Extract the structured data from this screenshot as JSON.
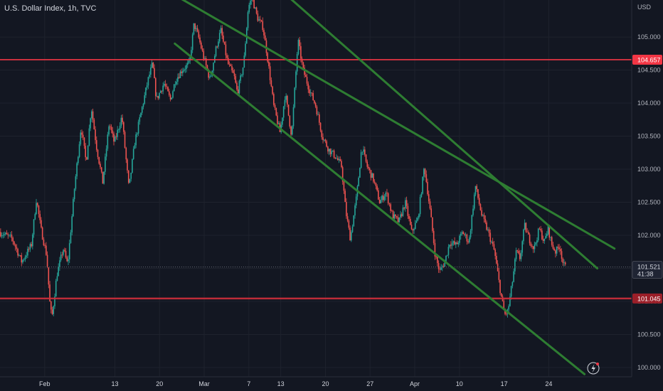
{
  "header": {
    "title": "U.S. Dollar Index, 1h, TVC"
  },
  "colors": {
    "background": "#131722",
    "up": "#26a69a",
    "down": "#ef5350",
    "trendline": "#2e7d32",
    "hline": "#f23645",
    "grid": "#1e222d",
    "axis_text": "#b2b5be"
  },
  "chart_data": {
    "type": "candlestick",
    "title": "U.S. Dollar Index, 1h, TVC",
    "y_unit": "USD",
    "ylim": [
      99.86,
      105.56
    ],
    "y_ticks": [
      "100.000",
      "100.500",
      "101.000",
      "101.500",
      "102.000",
      "102.500",
      "103.000",
      "103.500",
      "104.000",
      "104.500",
      "105.000"
    ],
    "x_ticks": [
      "Feb",
      "13",
      "20",
      "Mar",
      "7",
      "13",
      "20",
      "27",
      "Apr",
      "10",
      "17",
      "24"
    ],
    "x_tick_positions": [
      2,
      13,
      20,
      27,
      34,
      39,
      46,
      53,
      60,
      67,
      74,
      81
    ],
    "x_range": [
      -5,
      94
    ],
    "price_path": [
      [
        -5,
        102.05
      ],
      [
        -3,
        101.95
      ],
      [
        -1.5,
        101.6
      ],
      [
        0,
        101.85
      ],
      [
        0.8,
        102.55
      ],
      [
        1.5,
        102.1
      ],
      [
        2.4,
        101.7
      ],
      [
        3.0,
        100.85
      ],
      [
        3.3,
        100.8
      ],
      [
        4.0,
        101.4
      ],
      [
        5.0,
        101.8
      ],
      [
        5.7,
        101.55
      ],
      [
        6.8,
        102.75
      ],
      [
        7.8,
        103.65
      ],
      [
        8.6,
        103.1
      ],
      [
        9.4,
        103.95
      ],
      [
        10.2,
        103.35
      ],
      [
        11.2,
        102.8
      ],
      [
        12.2,
        103.7
      ],
      [
        13.0,
        103.4
      ],
      [
        14.2,
        103.8
      ],
      [
        14.8,
        103.2
      ],
      [
        15.3,
        102.7
      ],
      [
        16.2,
        103.4
      ],
      [
        17.3,
        103.9
      ],
      [
        18.3,
        104.35
      ],
      [
        19.0,
        104.6
      ],
      [
        19.6,
        104.05
      ],
      [
        20.8,
        104.3
      ],
      [
        21.8,
        104.05
      ],
      [
        22.6,
        104.35
      ],
      [
        23.6,
        104.5
      ],
      [
        24.8,
        104.6
      ],
      [
        25.5,
        105.2
      ],
      [
        26.2,
        105.0
      ],
      [
        27.0,
        104.7
      ],
      [
        28.0,
        104.35
      ],
      [
        29.0,
        104.85
      ],
      [
        29.7,
        105.1
      ],
      [
        30.8,
        104.6
      ],
      [
        31.8,
        104.4
      ],
      [
        32.3,
        104.15
      ],
      [
        33.3,
        104.6
      ],
      [
        34.0,
        105.45
      ],
      [
        34.6,
        105.6
      ],
      [
        35.4,
        105.3
      ],
      [
        36.3,
        105.15
      ],
      [
        37.0,
        104.7
      ],
      [
        38.0,
        103.95
      ],
      [
        39.0,
        103.55
      ],
      [
        39.8,
        104.15
      ],
      [
        40.8,
        103.5
      ],
      [
        41.8,
        104.95
      ],
      [
        42.6,
        104.5
      ],
      [
        43.6,
        104.2
      ],
      [
        44.6,
        103.95
      ],
      [
        45.6,
        103.5
      ],
      [
        46.6,
        103.3
      ],
      [
        47.6,
        103.2
      ],
      [
        48.6,
        103.05
      ],
      [
        49.3,
        102.35
      ],
      [
        50.0,
        101.95
      ],
      [
        51.0,
        102.6
      ],
      [
        51.8,
        103.35
      ],
      [
        52.6,
        103.05
      ],
      [
        53.6,
        102.85
      ],
      [
        54.6,
        102.5
      ],
      [
        55.6,
        102.65
      ],
      [
        56.6,
        102.3
      ],
      [
        57.6,
        102.2
      ],
      [
        58.6,
        102.5
      ],
      [
        59.6,
        102.05
      ],
      [
        60.6,
        102.25
      ],
      [
        61.6,
        103.05
      ],
      [
        62.6,
        102.3
      ],
      [
        63.3,
        101.7
      ],
      [
        64.0,
        101.45
      ],
      [
        64.8,
        101.6
      ],
      [
        65.6,
        101.9
      ],
      [
        66.6,
        101.85
      ],
      [
        67.6,
        102.05
      ],
      [
        68.6,
        101.9
      ],
      [
        69.6,
        102.75
      ],
      [
        70.6,
        102.3
      ],
      [
        71.6,
        102.05
      ],
      [
        72.6,
        101.75
      ],
      [
        73.6,
        101.1
      ],
      [
        74.2,
        100.8
      ],
      [
        74.7,
        100.85
      ],
      [
        75.4,
        101.3
      ],
      [
        76.0,
        101.75
      ],
      [
        76.6,
        101.65
      ],
      [
        77.3,
        102.15
      ],
      [
        78.0,
        101.95
      ],
      [
        78.8,
        101.8
      ],
      [
        79.6,
        102.1
      ],
      [
        80.4,
        101.9
      ],
      [
        81.0,
        102.1
      ],
      [
        81.6,
        101.85
      ],
      [
        82.2,
        101.75
      ],
      [
        82.8,
        101.85
      ],
      [
        83.4,
        101.55
      ],
      [
        83.7,
        101.52
      ]
    ],
    "candle_count": 460,
    "trendlines": [
      {
        "from": [
          23.0,
          105.6
        ],
        "to": [
          91.3,
          101.8
        ]
      },
      {
        "from": [
          22.4,
          104.9
        ],
        "to": [
          86.6,
          99.9
        ]
      },
      {
        "from": [
          40.3,
          105.6
        ],
        "to": [
          88.6,
          101.5
        ]
      }
    ],
    "horizontal_lines": [
      {
        "price": 104.657,
        "label": "104.657"
      },
      {
        "price": 101.045,
        "label": "101.045"
      }
    ],
    "current_price": {
      "value": "101.521",
      "countdown": "41:38",
      "price": 101.521
    }
  }
}
